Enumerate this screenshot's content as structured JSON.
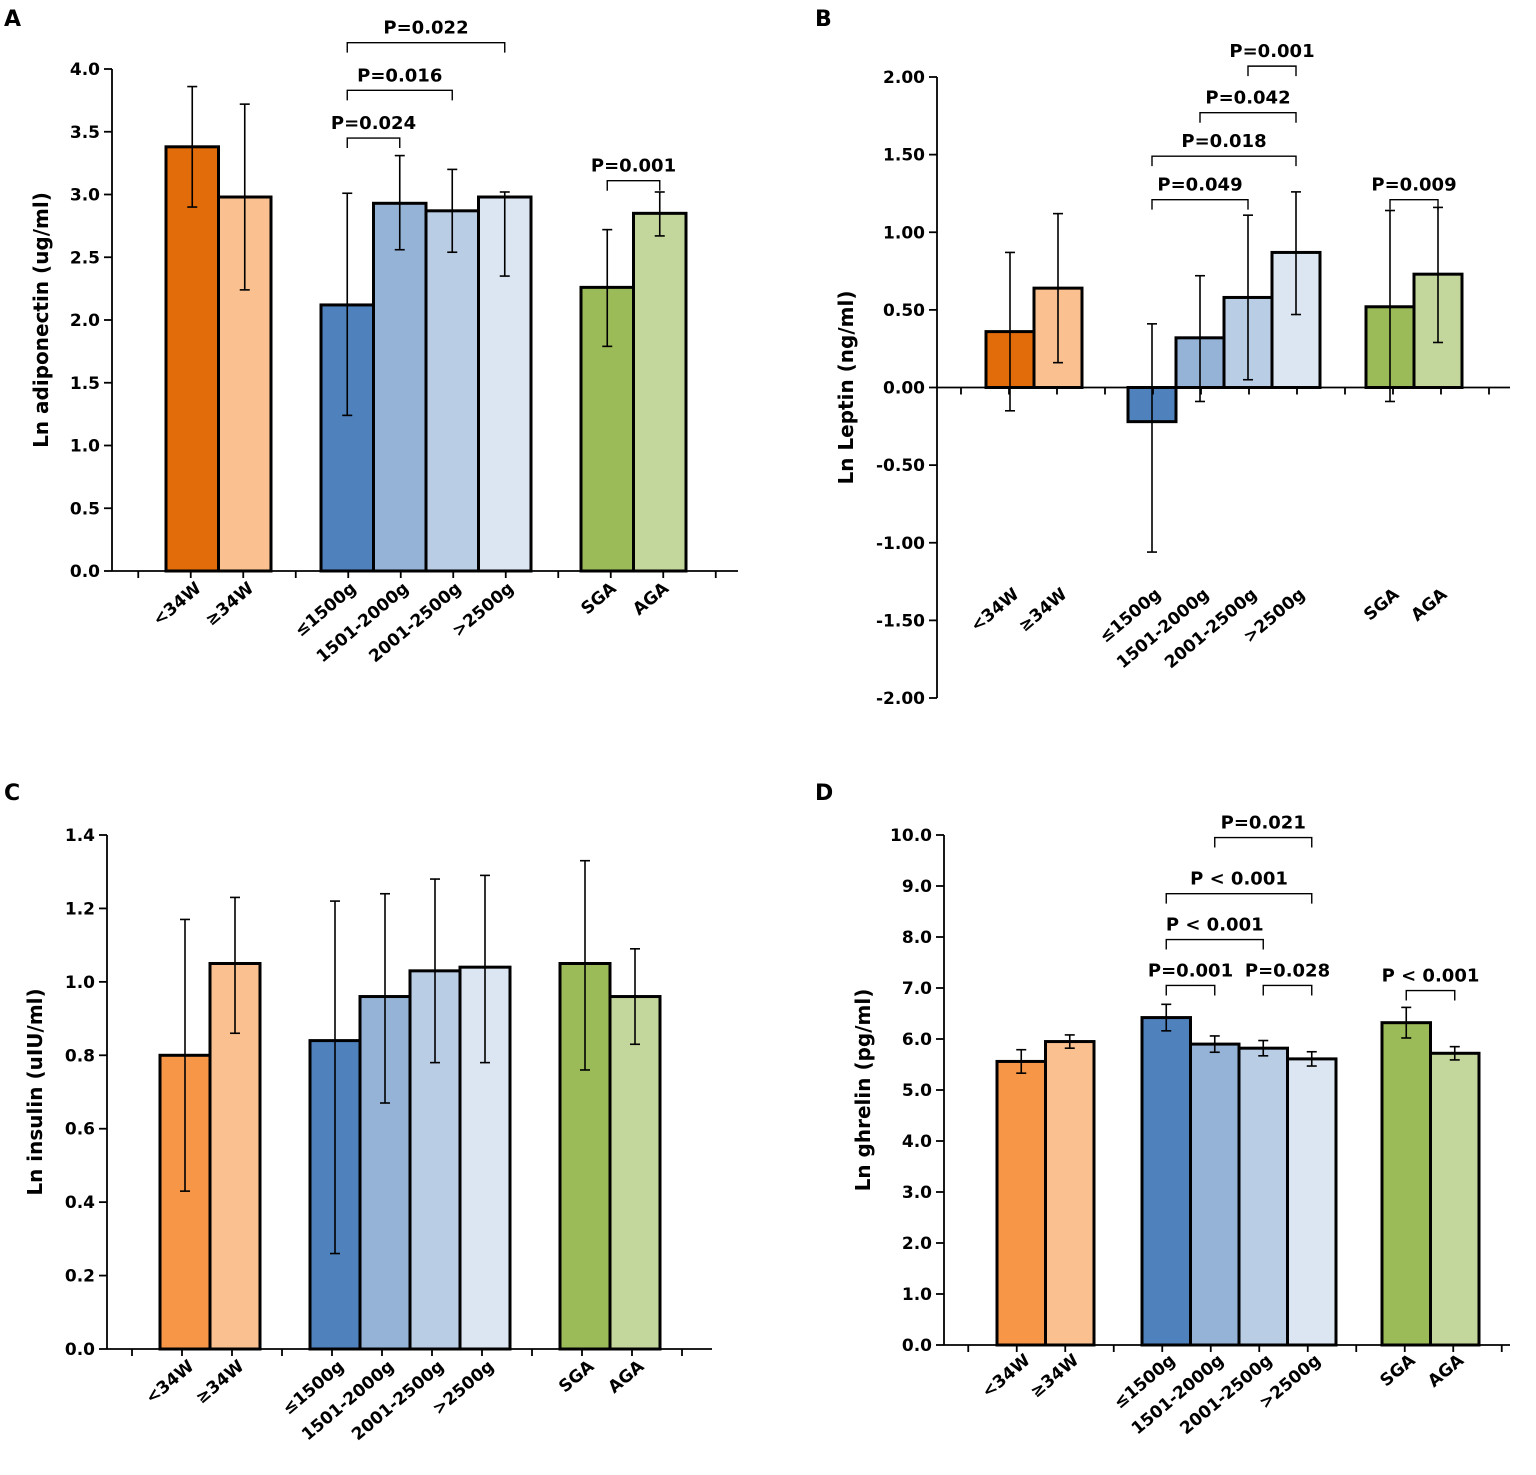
{
  "chart_data": [
    {
      "panel": "A",
      "type": "bar",
      "ylabel": "Ln adiponectin (ug/ml)",
      "ylim": [
        0,
        4
      ],
      "yticks": [
        "0.0",
        "0.5",
        "1.0",
        "1.5",
        "2.0",
        "2.5",
        "3.0",
        "3.5",
        "4.0"
      ],
      "categories": [
        "<34W",
        "≥34W",
        "≤1500g",
        "1501-2000g",
        "2001-2500g",
        ">2500g",
        "SGA",
        "AGA"
      ],
      "groups": [
        [
          0,
          1
        ],
        [
          2,
          3,
          4,
          5
        ],
        [
          6,
          7
        ]
      ],
      "values": [
        3.38,
        2.98,
        2.12,
        2.93,
        2.87,
        2.98,
        2.26,
        2.85
      ],
      "err_low": [
        2.9,
        2.24,
        1.24,
        2.56,
        2.54,
        2.35,
        1.79,
        2.67
      ],
      "err_high": [
        3.86,
        3.72,
        3.01,
        3.31,
        3.2,
        3.02,
        2.72,
        3.02
      ],
      "colors": [
        "#E36C0A",
        "#FAC090",
        "#4F81BD",
        "#95B3D7",
        "#B9CDE5",
        "#DCE6F2",
        "#9BBB59",
        "#C3D69B"
      ],
      "comparisons": [
        {
          "from": 2,
          "to": 5,
          "label": "P=0.022",
          "y": 4.21
        },
        {
          "from": 2,
          "to": 4,
          "label": "P=0.016",
          "y": 3.83
        },
        {
          "from": 2,
          "to": 3,
          "label": "P=0.024",
          "y": 3.45
        },
        {
          "from": 6,
          "to": 7,
          "label": "P=0.001",
          "y": 3.11
        }
      ]
    },
    {
      "panel": "B",
      "type": "bar",
      "ylabel": "Ln Leptin (ng/ml)",
      "ylim": [
        -2,
        2
      ],
      "yticks": [
        "-2.00",
        "-1.50",
        "-1.00",
        "-0.50",
        "0.00",
        "0.50",
        "1.00",
        "1.50",
        "2.00"
      ],
      "categories": [
        "<34W",
        "≥34W",
        "≤1500g",
        "1501-2000g",
        "2001-2500g",
        ">2500g",
        "SGA",
        "AGA"
      ],
      "groups": [
        [
          0,
          1
        ],
        [
          2,
          3,
          4,
          5
        ],
        [
          6,
          7
        ]
      ],
      "values": [
        0.36,
        0.64,
        -0.22,
        0.32,
        0.58,
        0.87,
        0.52,
        0.73
      ],
      "err_low": [
        -0.15,
        0.16,
        -1.06,
        -0.09,
        0.05,
        0.47,
        -0.09,
        0.29
      ],
      "err_high": [
        0.87,
        1.12,
        0.41,
        0.72,
        1.11,
        1.26,
        1.14,
        1.16
      ],
      "colors": [
        "#E36C0A",
        "#FAC090",
        "#4F81BD",
        "#95B3D7",
        "#B9CDE5",
        "#DCE6F2",
        "#9BBB59",
        "#C3D69B"
      ],
      "comparisons": [
        {
          "from": 4,
          "to": 5,
          "label": "P=0.001",
          "y": 2.07
        },
        {
          "from": 3,
          "to": 5,
          "label": "P=0.042",
          "y": 1.77
        },
        {
          "from": 2,
          "to": 5,
          "label": "P=0.018",
          "y": 1.49
        },
        {
          "from": 2,
          "to": 4,
          "label": "P=0.049",
          "y": 1.21
        },
        {
          "from": 6,
          "to": 7,
          "label": "P=0.009",
          "y": 1.21
        }
      ]
    },
    {
      "panel": "C",
      "type": "bar",
      "ylabel": "Ln insulin (uIU/ml)",
      "ylim": [
        0,
        1.4
      ],
      "yticks": [
        "0.0",
        "0.2",
        "0.4",
        "0.6",
        "0.8",
        "1.0",
        "1.2",
        "1.4"
      ],
      "categories": [
        "<34W",
        "≥34W",
        "≤1500g",
        "1501-2000g",
        "2001-2500g",
        ">2500g",
        "SGA",
        "AGA"
      ],
      "groups": [
        [
          0,
          1
        ],
        [
          2,
          3,
          4,
          5
        ],
        [
          6,
          7
        ]
      ],
      "values": [
        0.8,
        1.05,
        0.84,
        0.96,
        1.03,
        1.04,
        1.05,
        0.96
      ],
      "err_low": [
        0.43,
        0.86,
        0.26,
        0.67,
        0.78,
        0.78,
        0.76,
        0.83
      ],
      "err_high": [
        1.17,
        1.23,
        1.22,
        1.24,
        1.28,
        1.29,
        1.33,
        1.09
      ],
      "colors": [
        "#F79646",
        "#FAC090",
        "#4F81BD",
        "#95B3D7",
        "#B9CDE5",
        "#DCE6F2",
        "#9BBB59",
        "#C3D69B"
      ],
      "comparisons": []
    },
    {
      "panel": "D",
      "type": "bar",
      "ylabel": "Ln ghrelin (pg/ml)",
      "ylim": [
        0,
        10
      ],
      "yticks": [
        "0.0",
        "1.0",
        "2.0",
        "3.0",
        "4.0",
        "5.0",
        "6.0",
        "7.0",
        "8.0",
        "9.0",
        "10.0"
      ],
      "categories": [
        "<34W",
        "≥34W",
        "≤1500g",
        "1501-2000g",
        "2001-2500g",
        ">2500g",
        "SGA",
        "AGA"
      ],
      "groups": [
        [
          0,
          1
        ],
        [
          2,
          3,
          4,
          5
        ],
        [
          6,
          7
        ]
      ],
      "values": [
        5.56,
        5.95,
        6.42,
        5.9,
        5.82,
        5.61,
        6.32,
        5.72
      ],
      "err_low": [
        5.33,
        5.82,
        6.16,
        5.74,
        5.67,
        5.47,
        6.02,
        5.59
      ],
      "err_high": [
        5.79,
        6.08,
        6.68,
        6.06,
        5.97,
        5.75,
        6.62,
        5.85
      ],
      "colors": [
        "#F79646",
        "#FAC090",
        "#4F81BD",
        "#95B3D7",
        "#B9CDE5",
        "#DCE6F2",
        "#9BBB59",
        "#C3D69B"
      ],
      "comparisons": [
        {
          "from": 3,
          "to": 5,
          "label": "P=0.021",
          "y": 9.95
        },
        {
          "from": 2,
          "to": 5,
          "label": "P < 0.001",
          "y": 8.85
        },
        {
          "from": 2,
          "to": 4,
          "label": "P < 0.001",
          "y": 7.95
        },
        {
          "from": 2,
          "to": 3,
          "label": "P=0.001",
          "y": 7.05
        },
        {
          "from": 4,
          "to": 5,
          "label": "P=0.028",
          "y": 7.05
        },
        {
          "from": 6,
          "to": 7,
          "label": "P < 0.001",
          "y": 6.95
        }
      ]
    }
  ]
}
